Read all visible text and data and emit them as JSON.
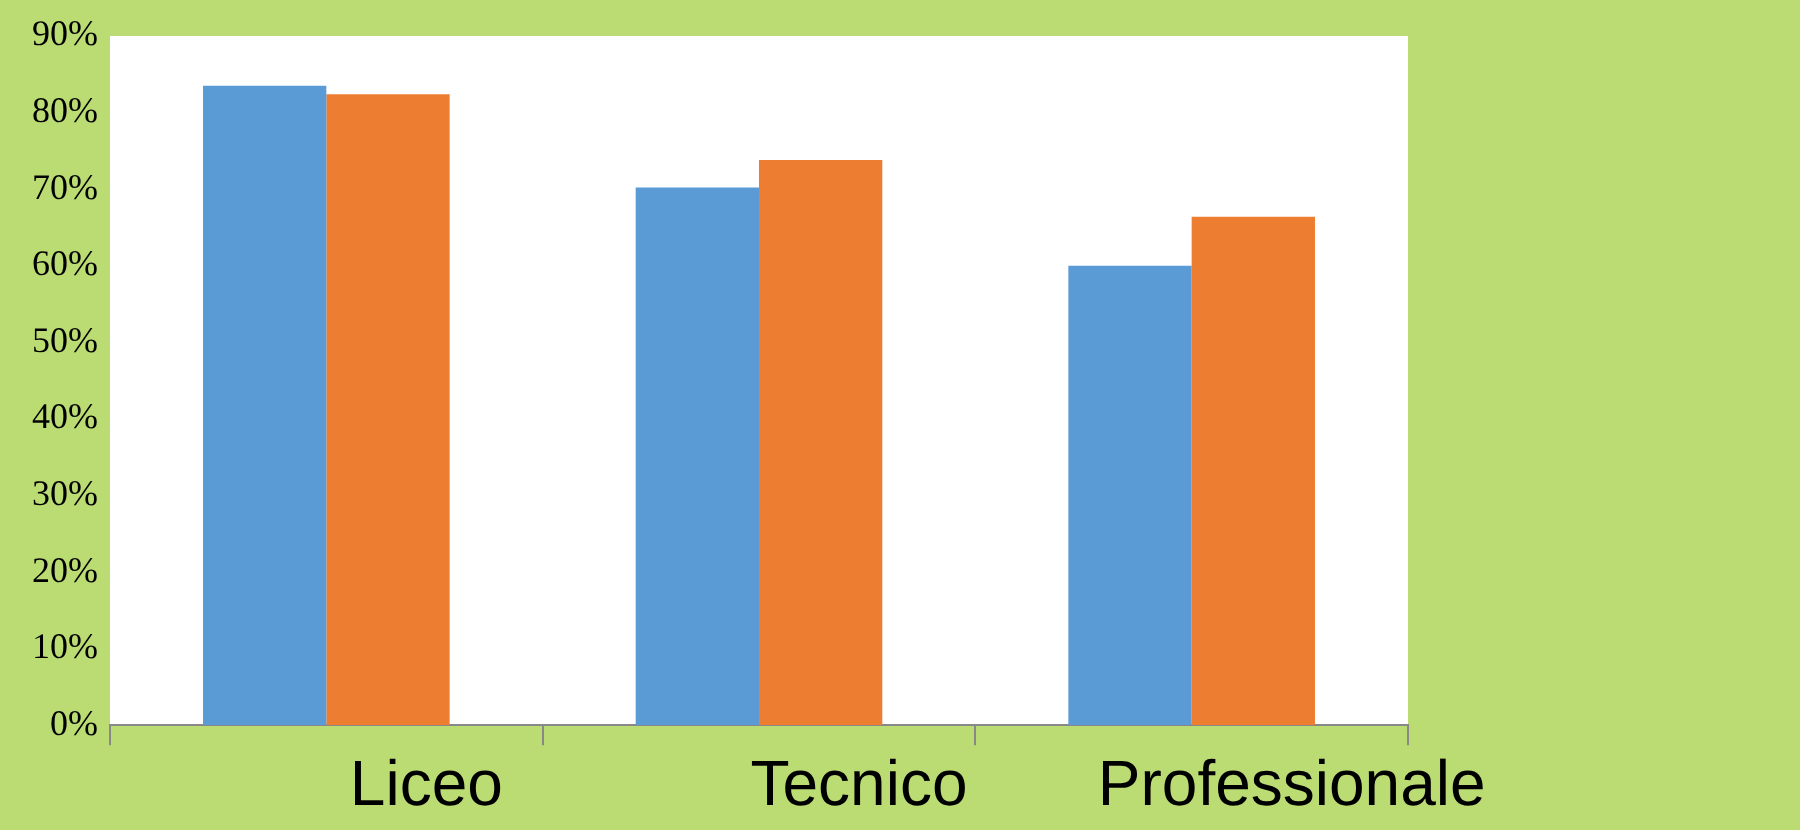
{
  "chart_data": {
    "type": "bar",
    "categories": [
      "Liceo",
      "Tecnico",
      "Professionale"
    ],
    "series": [
      {
        "color": "#5b9bd5",
        "values": [
          83.5,
          70.2,
          60
        ]
      },
      {
        "color": "#ed7d31",
        "values": [
          82.4,
          73.8,
          66.4
        ]
      }
    ],
    "ylim": [
      0,
      90
    ],
    "yticks": [
      {
        "value": 0,
        "label": "0%"
      },
      {
        "value": 10,
        "label": "10%"
      },
      {
        "value": 20,
        "label": "20%"
      },
      {
        "value": 30,
        "label": "30%"
      },
      {
        "value": 40,
        "label": "40%"
      },
      {
        "value": 50,
        "label": "50%"
      },
      {
        "value": 60,
        "label": "60%"
      },
      {
        "value": 70,
        "label": "70%"
      },
      {
        "value": 80,
        "label": "80%"
      },
      {
        "value": 90,
        "label": "90%"
      }
    ],
    "grid": false,
    "legend": false
  }
}
